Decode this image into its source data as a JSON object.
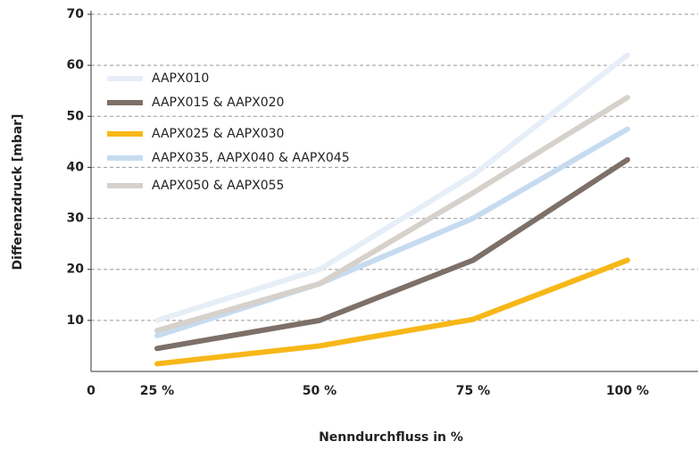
{
  "chart_data": {
    "type": "line",
    "x_label": "Nenndurchfluss in %",
    "y_label": "Differenzdruck [mbar]",
    "categories": [
      "0",
      "25 %",
      "50 %",
      "75 %",
      "100 %"
    ],
    "series": [
      {
        "name": "AAPX010",
        "color": "#e6eef7",
        "values": [
          null,
          10,
          20,
          38.5,
          62
        ]
      },
      {
        "name": "AAPX015 & AAPX020",
        "color": "#7d7068",
        "values": [
          null,
          4.5,
          10,
          21.8,
          41.5
        ]
      },
      {
        "name": "AAPX025 & AAPX030",
        "color": "#f7b718",
        "values": [
          null,
          1.5,
          5,
          10.2,
          21.8
        ]
      },
      {
        "name": "AAPX035, AAPX040 & AAPX045",
        "color": "#c6dbf0",
        "values": [
          null,
          7,
          17.2,
          30,
          47.5
        ]
      },
      {
        "name": "AAPX050 & AAPX055",
        "color": "#d6d1cb",
        "values": [
          null,
          8,
          17.2,
          35,
          53.7
        ]
      }
    ],
    "ylim": [
      0,
      70
    ],
    "yticks": [
      10,
      20,
      30,
      40,
      50,
      60,
      70
    ],
    "grid": true,
    "legend": "upper left"
  }
}
